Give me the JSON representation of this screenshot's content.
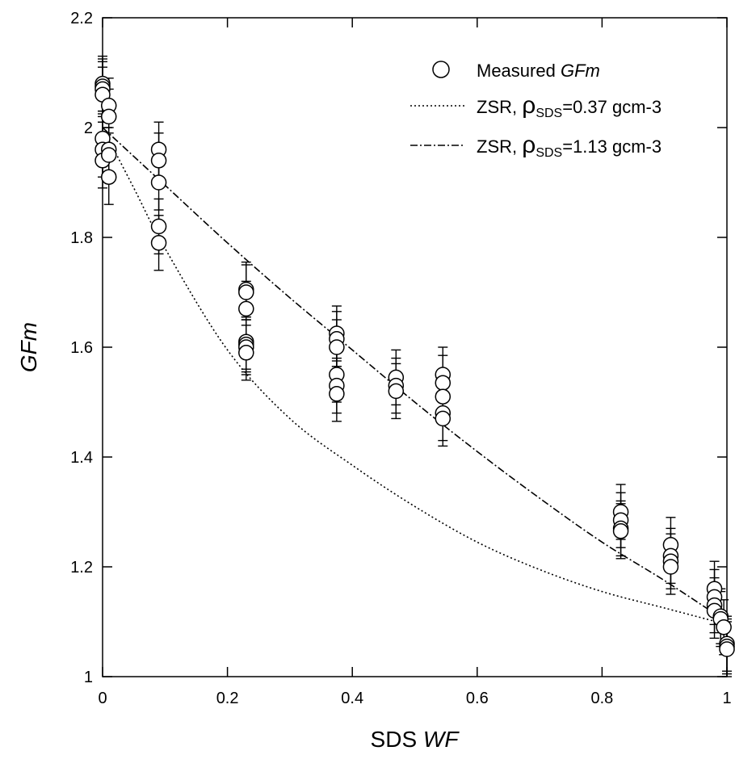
{
  "chart_data": {
    "type": "scatter",
    "xlabel": {
      "prefix": "SDS ",
      "italic": "WF"
    },
    "ylabel": "GFm",
    "xlim": [
      0,
      1
    ],
    "ylim": [
      1,
      2.2
    ],
    "x_ticks": [
      0,
      0.2,
      0.4,
      0.6,
      0.8,
      1
    ],
    "x_tick_labels": [
      "0",
      "0.2",
      "0.4",
      "0.6",
      "0.8",
      "1"
    ],
    "y_ticks": [
      1,
      1.2,
      1.4,
      1.6,
      1.8,
      2,
      2.2
    ],
    "y_tick_labels": [
      "1",
      "1.2",
      "1.4",
      "1.6",
      "1.8",
      "2",
      "2.2"
    ],
    "grid": false,
    "legend_position": "top-right",
    "legend": [
      {
        "id": "measured",
        "label_prefix": "Measured ",
        "label_italic": "GFm",
        "marker": "circle"
      },
      {
        "id": "zsr037",
        "label_prefix": "ZSR, ",
        "rho": "ρ",
        "subscript": "SDS",
        "label_suffix": "=0.37 gcm-3",
        "line": "dotted"
      },
      {
        "id": "zsr113",
        "label_prefix": "ZSR, ",
        "rho": "ρ",
        "subscript": "SDS",
        "label_suffix": "=1.13 gcm-3",
        "line": "dashdot"
      }
    ],
    "series": [
      {
        "id": "measured",
        "kind": "points",
        "error": 0.05,
        "points": [
          [
            0,
            2.08
          ],
          [
            0,
            2.075
          ],
          [
            0,
            2.07
          ],
          [
            0,
            2.06
          ],
          [
            0,
            1.98
          ],
          [
            0,
            1.96
          ],
          [
            0,
            1.94
          ],
          [
            0.01,
            2.04
          ],
          [
            0.01,
            2.02
          ],
          [
            0.01,
            1.96
          ],
          [
            0.01,
            1.95
          ],
          [
            0.01,
            1.91
          ],
          [
            0.09,
            1.96
          ],
          [
            0.09,
            1.94
          ],
          [
            0.09,
            1.9
          ],
          [
            0.09,
            1.82
          ],
          [
            0.09,
            1.79
          ],
          [
            0.23,
            1.705
          ],
          [
            0.23,
            1.7
          ],
          [
            0.23,
            1.67
          ],
          [
            0.23,
            1.61
          ],
          [
            0.23,
            1.605
          ],
          [
            0.23,
            1.6
          ],
          [
            0.23,
            1.59
          ],
          [
            0.375,
            1.625
          ],
          [
            0.375,
            1.615
          ],
          [
            0.375,
            1.6
          ],
          [
            0.375,
            1.55
          ],
          [
            0.375,
            1.53
          ],
          [
            0.375,
            1.515
          ],
          [
            0.47,
            1.545
          ],
          [
            0.47,
            1.53
          ],
          [
            0.47,
            1.52
          ],
          [
            0.545,
            1.55
          ],
          [
            0.545,
            1.535
          ],
          [
            0.545,
            1.51
          ],
          [
            0.545,
            1.48
          ],
          [
            0.545,
            1.47
          ],
          [
            0.83,
            1.3
          ],
          [
            0.83,
            1.285
          ],
          [
            0.83,
            1.27
          ],
          [
            0.83,
            1.265
          ],
          [
            0.91,
            1.24
          ],
          [
            0.91,
            1.22
          ],
          [
            0.91,
            1.21
          ],
          [
            0.91,
            1.2
          ],
          [
            0.98,
            1.16
          ],
          [
            0.98,
            1.145
          ],
          [
            0.98,
            1.13
          ],
          [
            0.98,
            1.12
          ],
          [
            0.99,
            1.11
          ],
          [
            0.99,
            1.105
          ],
          [
            0.995,
            1.09
          ],
          [
            1,
            1.06
          ],
          [
            1,
            1.055
          ],
          [
            1,
            1.05
          ]
        ]
      },
      {
        "id": "zsr037",
        "kind": "line",
        "style": "dotted",
        "points": [
          [
            0,
            2.0
          ],
          [
            0.05,
            1.89
          ],
          [
            0.1,
            1.78
          ],
          [
            0.2,
            1.595
          ],
          [
            0.3,
            1.47
          ],
          [
            0.4,
            1.385
          ],
          [
            0.5,
            1.31
          ],
          [
            0.6,
            1.245
          ],
          [
            0.7,
            1.195
          ],
          [
            0.8,
            1.155
          ],
          [
            0.9,
            1.125
          ],
          [
            1,
            1.095
          ]
        ]
      },
      {
        "id": "zsr113",
        "kind": "line",
        "style": "dashdot",
        "points": [
          [
            0,
            2.0
          ],
          [
            0.1,
            1.895
          ],
          [
            0.2,
            1.79
          ],
          [
            0.3,
            1.69
          ],
          [
            0.4,
            1.595
          ],
          [
            0.5,
            1.5
          ],
          [
            0.6,
            1.41
          ],
          [
            0.7,
            1.325
          ],
          [
            0.8,
            1.245
          ],
          [
            0.9,
            1.175
          ],
          [
            1,
            1.1
          ]
        ]
      }
    ]
  }
}
